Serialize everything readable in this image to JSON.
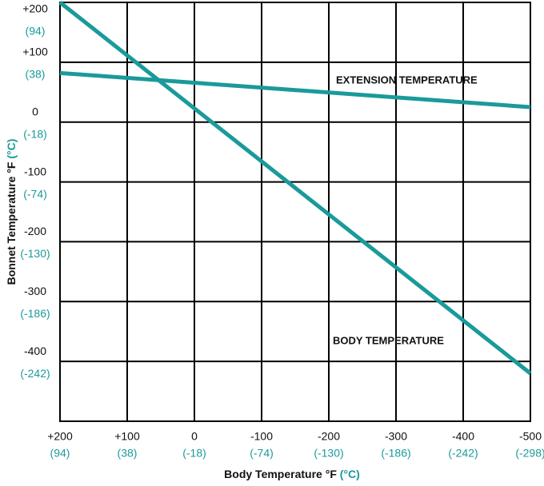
{
  "chart_data": {
    "type": "line",
    "x_label": "Body Temperature °F",
    "x_label_c": "(°C)",
    "y_label": "Bonnet Temperature °F",
    "y_label_c": "(°C)",
    "x": [
      200,
      -500
    ],
    "series": [
      {
        "name": "BODY TEMPERATURE",
        "color": "#1a9a9a",
        "values": [
          200,
          -420
        ]
      },
      {
        "name": "EXTENSION TEMPERATURE",
        "color": "#1a9a9a",
        "values": [
          82,
          25
        ]
      }
    ],
    "xlim": [
      200,
      -500
    ],
    "xticks": [
      {
        "value": 200,
        "label": "+200",
        "label_c": "(94)"
      },
      {
        "value": 100,
        "label": "+100",
        "label_c": "(38)"
      },
      {
        "value": 0,
        "label": "0",
        "label_c": "(-18)"
      },
      {
        "value": -100,
        "label": "-100",
        "label_c": "(-74)"
      },
      {
        "value": -200,
        "label": "-200",
        "label_c": "(-130)"
      },
      {
        "value": -300,
        "label": "-300",
        "label_c": "(-186)"
      },
      {
        "value": -400,
        "label": "-400",
        "label_c": "(-242)"
      },
      {
        "value": -500,
        "label": "-500",
        "label_c": "(-298)"
      }
    ],
    "ylim": [
      -500,
      200
    ],
    "yticks": [
      {
        "value": 200,
        "label": "+200",
        "label_c": "(94)"
      },
      {
        "value": 100,
        "label": "+100",
        "label_c": "(38)"
      },
      {
        "value": 0,
        "label": "0",
        "label_c": "(-18)"
      },
      {
        "value": -100,
        "label": "-100",
        "label_c": "(-74)"
      },
      {
        "value": -200,
        "label": "-200",
        "label_c": "(-130)"
      },
      {
        "value": -300,
        "label": "-300",
        "label_c": "(-186)"
      },
      {
        "value": -400,
        "label": "-400",
        "label_c": "(-242)"
      }
    ],
    "grid": true
  }
}
